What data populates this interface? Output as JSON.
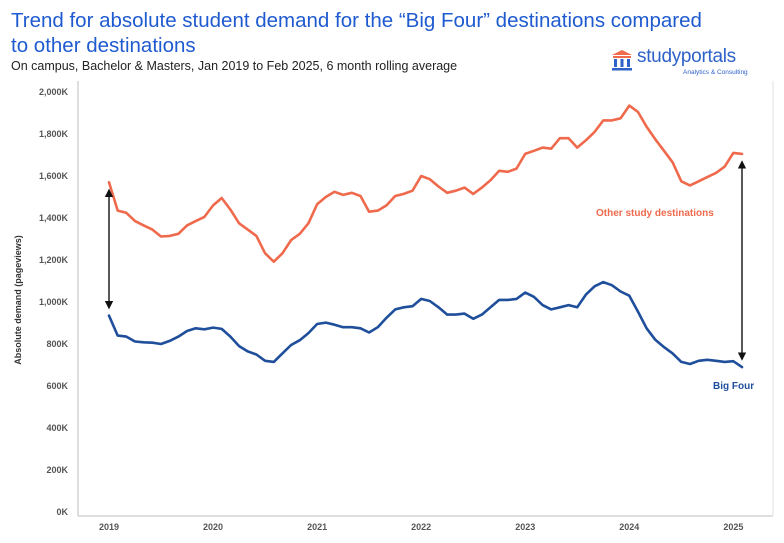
{
  "title": "Trend for absolute student demand for the “Big Four” destinations compared to other destinations",
  "subtitle": "On campus, Bachelor & Masters, Jan 2019 to Feb 2025, 6 month rolling average",
  "logo": {
    "name": "studyportals",
    "tagline": "Analytics & Consulting",
    "icon": "building-columns-icon",
    "color": "#2f62c9"
  },
  "chart_data": {
    "type": "line",
    "title": "Trend for absolute student demand for the “Big Four” destinations compared to other destinations",
    "subtitle": "On campus, Bachelor & Masters, Jan 2019 to Feb 2025, 6 month rolling average",
    "ylabel": "Absolute demand (pageviews)",
    "xlabel": "",
    "ylim": [
      0,
      2000000
    ],
    "yticks": [
      0,
      200000,
      400000,
      600000,
      800000,
      1000000,
      1200000,
      1400000,
      1600000,
      1800000,
      2000000
    ],
    "ytick_labels": [
      "0K",
      "200K",
      "400K",
      "600K",
      "800K",
      "1,000K",
      "1,200K",
      "1,400K",
      "1,600K",
      "1,800K",
      "2,000K"
    ],
    "xtick_labels": [
      "2019",
      "2020",
      "2021",
      "2022",
      "2023",
      "2024",
      "2025"
    ],
    "grid": false,
    "legend": "none",
    "series": [
      {
        "name": "Other study destinations",
        "color": "#ef6a4c",
        "values": [
          1570000,
          1435000,
          1425000,
          1385000,
          1365000,
          1345000,
          1312000,
          1315000,
          1325000,
          1365000,
          1385000,
          1405000,
          1460000,
          1495000,
          1440000,
          1375000,
          1345000,
          1315000,
          1232000,
          1192000,
          1232000,
          1295000,
          1325000,
          1375000,
          1465000,
          1500000,
          1525000,
          1510000,
          1520000,
          1505000,
          1430000,
          1435000,
          1460000,
          1505000,
          1515000,
          1530000,
          1600000,
          1585000,
          1550000,
          1520000,
          1530000,
          1545000,
          1515000,
          1545000,
          1580000,
          1625000,
          1620000,
          1635000,
          1705000,
          1720000,
          1735000,
          1730000,
          1780000,
          1780000,
          1735000,
          1770000,
          1810000,
          1865000,
          1865000,
          1875000,
          1935000,
          1905000,
          1835000,
          1775000,
          1720000,
          1665000,
          1575000,
          1555000,
          1575000,
          1595000,
          1615000,
          1645000,
          1710000,
          1705000
        ]
      },
      {
        "name": "Big Four",
        "color": "#1f4e9b",
        "values": [
          935000,
          840000,
          835000,
          812000,
          808000,
          806000,
          800000,
          815000,
          835000,
          862000,
          875000,
          870000,
          878000,
          872000,
          835000,
          790000,
          765000,
          750000,
          720000,
          715000,
          755000,
          795000,
          818000,
          852000,
          895000,
          902000,
          892000,
          880000,
          880000,
          875000,
          855000,
          880000,
          925000,
          965000,
          975000,
          980000,
          1015000,
          1005000,
          975000,
          940000,
          940000,
          945000,
          920000,
          940000,
          975000,
          1010000,
          1010000,
          1015000,
          1045000,
          1025000,
          985000,
          965000,
          975000,
          985000,
          975000,
          1035000,
          1075000,
          1095000,
          1080000,
          1050000,
          1030000,
          955000,
          875000,
          820000,
          785000,
          755000,
          715000,
          705000,
          720000,
          725000,
          720000,
          715000,
          718000,
          690000
        ]
      }
    ],
    "annotations": [
      {
        "text": "Other study destinations",
        "color": "#ef6a4c"
      },
      {
        "text": "Big Four",
        "color": "#1f4e9b"
      }
    ],
    "arrows": [
      {
        "x_index": 0,
        "from": 935000,
        "to": 1570000
      },
      {
        "x_index": 73,
        "from": 690000,
        "to": 1705000
      }
    ]
  }
}
